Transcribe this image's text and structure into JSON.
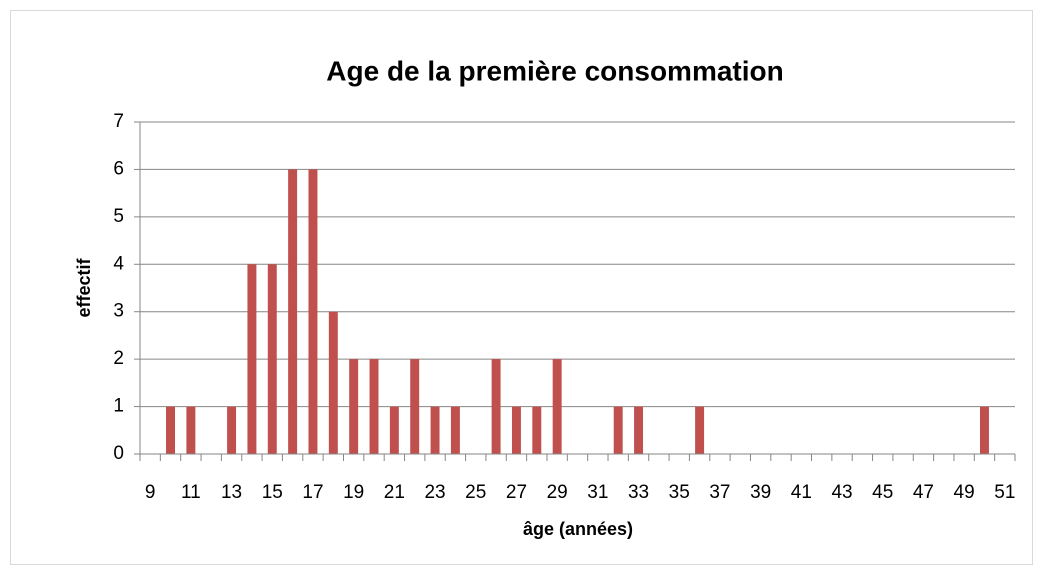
{
  "chart_data": {
    "type": "bar",
    "title": "Age de la première consommation",
    "x_label": "âge (années)",
    "y_label": "effectif",
    "x": [
      10,
      11,
      13,
      14,
      15,
      16,
      17,
      18,
      19,
      20,
      21,
      22,
      23,
      24,
      26,
      27,
      28,
      29,
      32,
      33,
      36,
      50
    ],
    "values": [
      1,
      1,
      1,
      4,
      4,
      6,
      6,
      3,
      2,
      2,
      1,
      2,
      1,
      1,
      2,
      1,
      1,
      2,
      1,
      1,
      1,
      1
    ],
    "color": "#c0504d",
    "xlim": [
      8.5,
      51.5
    ],
    "xticks": [
      9,
      11,
      13,
      15,
      17,
      19,
      21,
      23,
      25,
      27,
      29,
      31,
      33,
      35,
      37,
      39,
      41,
      43,
      45,
      47,
      49,
      51
    ],
    "ylim": [
      0,
      7
    ],
    "yticks": [
      0,
      1,
      2,
      3,
      4,
      5,
      6,
      7
    ],
    "grid": true
  }
}
